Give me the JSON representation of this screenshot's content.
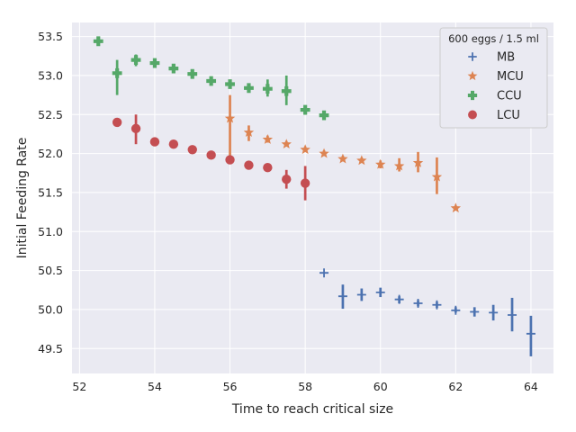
{
  "chart_data": {
    "type": "scatter",
    "xlabel": "Time to reach critical size",
    "ylabel": "Initial Feeding Rate",
    "xlim": [
      51.8,
      64.6
    ],
    "ylim": [
      49.18,
      53.68
    ],
    "xticks": [
      52,
      54,
      56,
      58,
      60,
      62,
      64
    ],
    "yticks": [
      49.5,
      50.0,
      50.5,
      51.0,
      51.5,
      52.0,
      52.5,
      53.0,
      53.5
    ],
    "grid": true,
    "legend": {
      "title": "600 eggs / 1.5 ml",
      "placement": "top-right"
    },
    "series": [
      {
        "name": "MB",
        "marker": "plus",
        "color": "#4c72b0",
        "points": [
          {
            "x": 58.5,
            "y": 50.47,
            "lo": 50.47,
            "hi": 50.47
          },
          {
            "x": 59.0,
            "y": 50.17,
            "lo": 50.01,
            "hi": 50.32
          },
          {
            "x": 59.5,
            "y": 50.19,
            "lo": 50.11,
            "hi": 50.27
          },
          {
            "x": 60.0,
            "y": 50.22,
            "lo": 50.16,
            "hi": 50.28
          },
          {
            "x": 60.5,
            "y": 50.13,
            "lo": 50.08,
            "hi": 50.17
          },
          {
            "x": 61.0,
            "y": 50.08,
            "lo": 50.04,
            "hi": 50.12
          },
          {
            "x": 61.5,
            "y": 50.06,
            "lo": 50.02,
            "hi": 50.1
          },
          {
            "x": 62.0,
            "y": 49.99,
            "lo": 49.96,
            "hi": 50.03
          },
          {
            "x": 62.5,
            "y": 49.97,
            "lo": 49.91,
            "hi": 50.03
          },
          {
            "x": 63.0,
            "y": 49.96,
            "lo": 49.86,
            "hi": 50.06
          },
          {
            "x": 63.5,
            "y": 49.93,
            "lo": 49.72,
            "hi": 50.15
          },
          {
            "x": 64.0,
            "y": 49.69,
            "lo": 49.4,
            "hi": 49.92
          }
        ]
      },
      {
        "name": "MCU",
        "marker": "star",
        "color": "#dd8452",
        "points": [
          {
            "x": 56.0,
            "y": 52.45,
            "lo": 51.92,
            "hi": 52.75
          },
          {
            "x": 56.5,
            "y": 52.27,
            "lo": 52.16,
            "hi": 52.36
          },
          {
            "x": 57.0,
            "y": 52.18,
            "lo": 52.14,
            "hi": 52.23
          },
          {
            "x": 57.5,
            "y": 52.12,
            "lo": 52.09,
            "hi": 52.16
          },
          {
            "x": 58.0,
            "y": 52.05,
            "lo": 52.02,
            "hi": 52.09
          },
          {
            "x": 58.5,
            "y": 52.0,
            "lo": 51.97,
            "hi": 52.04
          },
          {
            "x": 59.0,
            "y": 51.93,
            "lo": 51.9,
            "hi": 51.97
          },
          {
            "x": 59.5,
            "y": 51.91,
            "lo": 51.88,
            "hi": 51.95
          },
          {
            "x": 60.0,
            "y": 51.86,
            "lo": 51.81,
            "hi": 51.91
          },
          {
            "x": 60.5,
            "y": 51.84,
            "lo": 51.77,
            "hi": 51.94
          },
          {
            "x": 61.0,
            "y": 51.88,
            "lo": 51.76,
            "hi": 52.02
          },
          {
            "x": 61.5,
            "y": 51.7,
            "lo": 51.48,
            "hi": 51.95
          },
          {
            "x": 62.0,
            "y": 51.3,
            "lo": 51.3,
            "hi": 51.3
          }
        ]
      },
      {
        "name": "CCU",
        "marker": "plus-filled",
        "color": "#55a868",
        "points": [
          {
            "x": 52.5,
            "y": 53.44,
            "lo": 53.44,
            "hi": 53.44
          },
          {
            "x": 53.0,
            "y": 53.03,
            "lo": 52.75,
            "hi": 53.2
          },
          {
            "x": 53.5,
            "y": 53.2,
            "lo": 53.12,
            "hi": 53.27
          },
          {
            "x": 54.0,
            "y": 53.16,
            "lo": 53.12,
            "hi": 53.21
          },
          {
            "x": 54.5,
            "y": 53.09,
            "lo": 53.05,
            "hi": 53.13
          },
          {
            "x": 55.0,
            "y": 53.02,
            "lo": 52.98,
            "hi": 53.06
          },
          {
            "x": 55.5,
            "y": 52.93,
            "lo": 52.9,
            "hi": 52.97
          },
          {
            "x": 56.0,
            "y": 52.89,
            "lo": 52.84,
            "hi": 52.94
          },
          {
            "x": 56.5,
            "y": 52.84,
            "lo": 52.79,
            "hi": 52.89
          },
          {
            "x": 57.0,
            "y": 52.83,
            "lo": 52.73,
            "hi": 52.95
          },
          {
            "x": 57.5,
            "y": 52.8,
            "lo": 52.62,
            "hi": 53.0
          },
          {
            "x": 58.0,
            "y": 52.56,
            "lo": 52.53,
            "hi": 52.6
          },
          {
            "x": 58.5,
            "y": 52.49,
            "lo": 52.49,
            "hi": 52.49
          }
        ]
      },
      {
        "name": "LCU",
        "marker": "circle",
        "color": "#c44e52",
        "points": [
          {
            "x": 53.0,
            "y": 52.4,
            "lo": 52.4,
            "hi": 52.4
          },
          {
            "x": 53.5,
            "y": 52.32,
            "lo": 52.12,
            "hi": 52.5
          },
          {
            "x": 54.0,
            "y": 52.15,
            "lo": 52.11,
            "hi": 52.2
          },
          {
            "x": 54.5,
            "y": 52.12,
            "lo": 52.09,
            "hi": 52.15
          },
          {
            "x": 55.0,
            "y": 52.05,
            "lo": 52.02,
            "hi": 52.08
          },
          {
            "x": 55.5,
            "y": 51.98,
            "lo": 51.95,
            "hi": 52.01
          },
          {
            "x": 56.0,
            "y": 51.92,
            "lo": 51.88,
            "hi": 51.96
          },
          {
            "x": 56.5,
            "y": 51.85,
            "lo": 51.82,
            "hi": 51.88
          },
          {
            "x": 57.0,
            "y": 51.82,
            "lo": 51.78,
            "hi": 51.86
          },
          {
            "x": 57.5,
            "y": 51.67,
            "lo": 51.55,
            "hi": 51.79
          },
          {
            "x": 58.0,
            "y": 51.62,
            "lo": 51.4,
            "hi": 51.84
          }
        ]
      }
    ]
  }
}
